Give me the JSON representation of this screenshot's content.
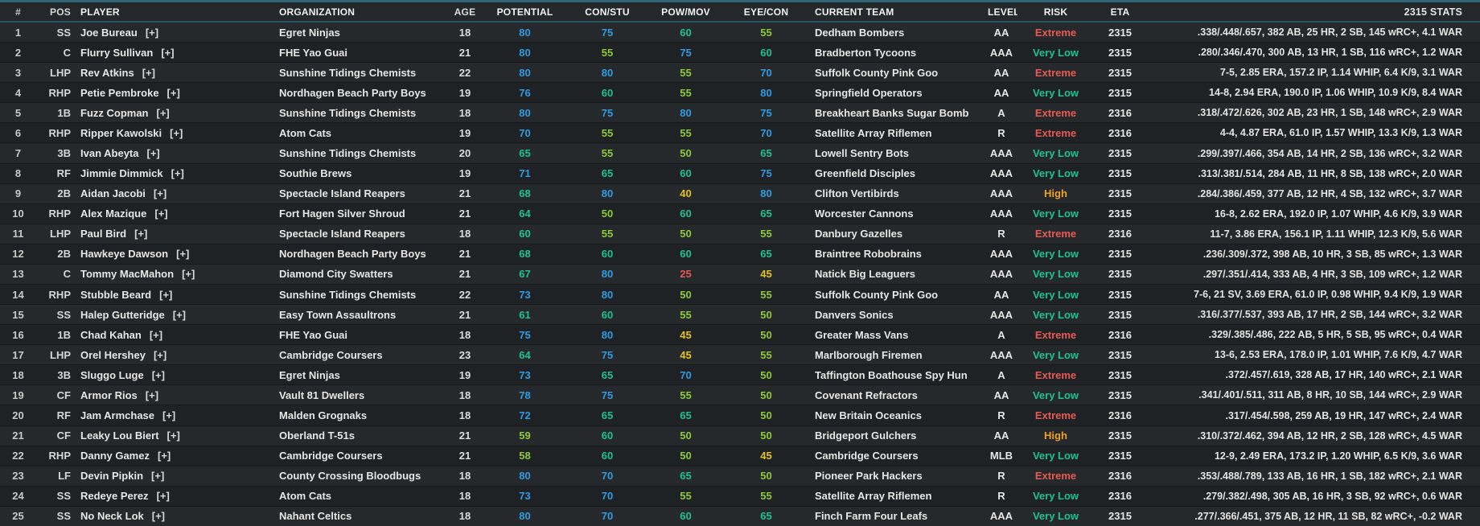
{
  "table": {
    "columns": [
      "#",
      "POS",
      "PLAYER",
      "ORGANIZATION",
      "AGE",
      "POTENTIAL",
      "CON/STU",
      "POW/MOV",
      "EYE/CON",
      "CURRENT TEAM",
      "LEVEL",
      "RISK",
      "ETA",
      "2315 STATS"
    ],
    "rows": [
      {
        "num": "1",
        "pos": "SS",
        "player": "Joe Bureau",
        "expand": "[+]",
        "org": "Egret Ninjas",
        "age": "18",
        "potential": 80,
        "con_stu": 75,
        "pow_mov": 60,
        "eye_con": 55,
        "team": "Dedham Bombers",
        "level": "AA",
        "risk": "Extreme",
        "eta": "2315",
        "stats": ".338/.448/.657, 382 AB, 25 HR, 2 SB, 145 wRC+, 4.1 WAR"
      },
      {
        "num": "2",
        "pos": "C",
        "player": "Flurry Sullivan",
        "expand": "[+]",
        "org": "FHE Yao Guai",
        "age": "21",
        "potential": 80,
        "con_stu": 55,
        "pow_mov": 75,
        "eye_con": 60,
        "team": "Bradberton Tycoons",
        "level": "AAA",
        "risk": "Very Low",
        "eta": "2315",
        "stats": ".280/.346/.470, 300 AB, 13 HR, 1 SB, 116 wRC+, 1.2 WAR"
      },
      {
        "num": "3",
        "pos": "LHP",
        "player": "Rev Atkins",
        "expand": "[+]",
        "org": "Sunshine Tidings Chemists",
        "age": "22",
        "potential": 80,
        "con_stu": 80,
        "pow_mov": 55,
        "eye_con": 70,
        "team": "Suffolk County Pink Goo",
        "level": "AA",
        "risk": "Extreme",
        "eta": "2315",
        "stats": "7-5, 2.85 ERA, 157.2 IP, 1.14 WHIP, 6.4 K/9, 3.1 WAR"
      },
      {
        "num": "4",
        "pos": "RHP",
        "player": "Petie Pembroke",
        "expand": "[+]",
        "org": "Nordhagen Beach Party Boys",
        "age": "19",
        "potential": 76,
        "con_stu": 60,
        "pow_mov": 55,
        "eye_con": 80,
        "team": "Springfield Operators",
        "level": "AA",
        "risk": "Very Low",
        "eta": "2315",
        "stats": "14-8, 2.94 ERA, 190.0 IP, 1.06 WHIP, 10.9 K/9, 8.4 WAR"
      },
      {
        "num": "5",
        "pos": "1B",
        "player": "Fuzz Copman",
        "expand": "[+]",
        "org": "Sunshine Tidings Chemists",
        "age": "18",
        "potential": 80,
        "con_stu": 75,
        "pow_mov": 80,
        "eye_con": 75,
        "team": "Breakheart Banks Sugar Bomb",
        "level": "A",
        "risk": "Extreme",
        "eta": "2316",
        "stats": ".318/.472/.626, 302 AB, 23 HR, 1 SB, 148 wRC+, 2.9 WAR"
      },
      {
        "num": "6",
        "pos": "RHP",
        "player": "Ripper Kawolski",
        "expand": "[+]",
        "org": "Atom Cats",
        "age": "19",
        "potential": 70,
        "con_stu": 55,
        "pow_mov": 55,
        "eye_con": 70,
        "team": "Satellite Array Riflemen",
        "level": "R",
        "risk": "Extreme",
        "eta": "2316",
        "stats": "4-4, 4.87 ERA, 61.0 IP, 1.57 WHIP, 13.3 K/9, 1.3 WAR"
      },
      {
        "num": "7",
        "pos": "3B",
        "player": "Ivan Abeyta",
        "expand": "[+]",
        "org": "Sunshine Tidings Chemists",
        "age": "20",
        "potential": 65,
        "con_stu": 55,
        "pow_mov": 50,
        "eye_con": 65,
        "team": "Lowell Sentry Bots",
        "level": "AAA",
        "risk": "Very Low",
        "eta": "2315",
        "stats": ".299/.397/.466, 354 AB, 14 HR, 2 SB, 136 wRC+, 3.2 WAR"
      },
      {
        "num": "8",
        "pos": "RF",
        "player": "Jimmie Dimmick",
        "expand": "[+]",
        "org": "Southie Brews",
        "age": "19",
        "potential": 71,
        "con_stu": 65,
        "pow_mov": 60,
        "eye_con": 75,
        "team": "Greenfield Disciples",
        "level": "AAA",
        "risk": "Very Low",
        "eta": "2315",
        "stats": ".313/.381/.514, 284 AB, 11 HR, 8 SB, 138 wRC+, 2.0 WAR"
      },
      {
        "num": "9",
        "pos": "2B",
        "player": "Aidan Jacobi",
        "expand": "[+]",
        "org": "Spectacle Island Reapers",
        "age": "21",
        "potential": 68,
        "con_stu": 80,
        "pow_mov": 40,
        "eye_con": 80,
        "team": "Clifton Vertibirds",
        "level": "AAA",
        "risk": "High",
        "eta": "2315",
        "stats": ".284/.386/.459, 377 AB, 12 HR, 4 SB, 132 wRC+, 3.7 WAR"
      },
      {
        "num": "10",
        "pos": "RHP",
        "player": "Alex Mazique",
        "expand": "[+]",
        "org": "Fort Hagen Silver Shroud",
        "age": "21",
        "potential": 64,
        "con_stu": 50,
        "pow_mov": 60,
        "eye_con": 65,
        "team": "Worcester Cannons",
        "level": "AAA",
        "risk": "Very Low",
        "eta": "2315",
        "stats": "16-8, 2.62 ERA, 192.0 IP, 1.07 WHIP, 4.6 K/9, 3.9 WAR"
      },
      {
        "num": "11",
        "pos": "LHP",
        "player": "Paul Bird",
        "expand": "[+]",
        "org": "Spectacle Island Reapers",
        "age": "18",
        "potential": 60,
        "con_stu": 55,
        "pow_mov": 50,
        "eye_con": 55,
        "team": "Danbury Gazelles",
        "level": "R",
        "risk": "Extreme",
        "eta": "2316",
        "stats": "11-7, 3.86 ERA, 156.1 IP, 1.11 WHIP, 12.3 K/9, 5.6 WAR"
      },
      {
        "num": "12",
        "pos": "2B",
        "player": "Hawkeye Dawson",
        "expand": "[+]",
        "org": "Nordhagen Beach Party Boys",
        "age": "21",
        "potential": 68,
        "con_stu": 60,
        "pow_mov": 60,
        "eye_con": 65,
        "team": "Braintree Robobrains",
        "level": "AAA",
        "risk": "Very Low",
        "eta": "2315",
        "stats": ".236/.309/.372, 398 AB, 10 HR, 3 SB, 85 wRC+, 1.3 WAR"
      },
      {
        "num": "13",
        "pos": "C",
        "player": "Tommy MacMahon",
        "expand": "[+]",
        "org": "Diamond City Swatters",
        "age": "21",
        "potential": 67,
        "con_stu": 80,
        "pow_mov": 25,
        "eye_con": 45,
        "team": "Natick Big Leaguers",
        "level": "AAA",
        "risk": "Very Low",
        "eta": "2315",
        "stats": ".297/.351/.414, 333 AB, 4 HR, 3 SB, 109 wRC+, 1.2 WAR"
      },
      {
        "num": "14",
        "pos": "RHP",
        "player": "Stubble Beard",
        "expand": "[+]",
        "org": "Sunshine Tidings Chemists",
        "age": "22",
        "potential": 73,
        "con_stu": 80,
        "pow_mov": 50,
        "eye_con": 55,
        "team": "Suffolk County Pink Goo",
        "level": "AA",
        "risk": "Very Low",
        "eta": "2315",
        "stats": "7-6, 21 SV, 3.69 ERA, 61.0 IP, 0.98 WHIP, 9.4 K/9, 1.9 WAR"
      },
      {
        "num": "15",
        "pos": "SS",
        "player": "Halep Gutteridge",
        "expand": "[+]",
        "org": "Easy Town Assaultrons",
        "age": "21",
        "potential": 61,
        "con_stu": 60,
        "pow_mov": 55,
        "eye_con": 50,
        "team": "Danvers Sonics",
        "level": "AAA",
        "risk": "Very Low",
        "eta": "2315",
        "stats": ".316/.377/.537, 393 AB, 17 HR, 2 SB, 144 wRC+, 3.2 WAR"
      },
      {
        "num": "16",
        "pos": "1B",
        "player": "Chad Kahan",
        "expand": "[+]",
        "org": "FHE Yao Guai",
        "age": "18",
        "potential": 75,
        "con_stu": 80,
        "pow_mov": 45,
        "eye_con": 50,
        "team": "Greater Mass Vans",
        "level": "A",
        "risk": "Extreme",
        "eta": "2316",
        "stats": ".329/.385/.486, 222 AB, 5 HR, 5 SB, 95 wRC+, 0.4 WAR"
      },
      {
        "num": "17",
        "pos": "LHP",
        "player": "Orel Hershey",
        "expand": "[+]",
        "org": "Cambridge Coursers",
        "age": "23",
        "potential": 64,
        "con_stu": 75,
        "pow_mov": 45,
        "eye_con": 55,
        "team": "Marlborough Firemen",
        "level": "AAA",
        "risk": "Very Low",
        "eta": "2315",
        "stats": "13-6, 2.53 ERA, 178.0 IP, 1.01 WHIP, 7.6 K/9, 4.7 WAR"
      },
      {
        "num": "18",
        "pos": "3B",
        "player": "Sluggo Luge",
        "expand": "[+]",
        "org": "Egret Ninjas",
        "age": "19",
        "potential": 73,
        "con_stu": 65,
        "pow_mov": 70,
        "eye_con": 50,
        "team": "Taffington Boathouse Spy Hun",
        "level": "A",
        "risk": "Extreme",
        "eta": "2315",
        "stats": ".372/.457/.619, 328 AB, 17 HR, 140 wRC+, 2.1 WAR"
      },
      {
        "num": "19",
        "pos": "CF",
        "player": "Armor Rios",
        "expand": "[+]",
        "org": "Vault 81 Dwellers",
        "age": "18",
        "potential": 78,
        "con_stu": 75,
        "pow_mov": 55,
        "eye_con": 50,
        "team": "Covenant Refractors",
        "level": "AA",
        "risk": "Very Low",
        "eta": "2315",
        "stats": ".341/.401/.511, 311 AB, 8 HR, 10 SB, 144 wRC+, 2.9 WAR"
      },
      {
        "num": "20",
        "pos": "RF",
        "player": "Jam Armchase",
        "expand": "[+]",
        "org": "Malden Grognaks",
        "age": "18",
        "potential": 72,
        "con_stu": 65,
        "pow_mov": 65,
        "eye_con": 50,
        "team": "New Britain Oceanics",
        "level": "R",
        "risk": "Extreme",
        "eta": "2316",
        "stats": ".317/.454/.598, 259 AB, 19 HR, 147 wRC+, 2.4 WAR"
      },
      {
        "num": "21",
        "pos": "CF",
        "player": "Leaky Lou Biert",
        "expand": "[+]",
        "org": "Oberland T-51s",
        "age": "21",
        "potential": 59,
        "con_stu": 60,
        "pow_mov": 50,
        "eye_con": 50,
        "team": "Bridgeport Gulchers",
        "level": "AA",
        "risk": "High",
        "eta": "2315",
        "stats": ".310/.372/.462, 394 AB, 12 HR, 2 SB, 128 wRC+, 4.5 WAR"
      },
      {
        "num": "22",
        "pos": "RHP",
        "player": "Danny Gamez",
        "expand": "[+]",
        "org": "Cambridge Coursers",
        "age": "21",
        "potential": 58,
        "con_stu": 60,
        "pow_mov": 50,
        "eye_con": 45,
        "team": "Cambridge Coursers",
        "level": "MLB",
        "risk": "Very Low",
        "eta": "2315",
        "stats": "12-9, 2.49 ERA, 173.2 IP, 1.20 WHIP, 6.5 K/9, 3.6 WAR"
      },
      {
        "num": "23",
        "pos": "LF",
        "player": "Devin Pipkin",
        "expand": "[+]",
        "org": "County Crossing Bloodbugs",
        "age": "18",
        "potential": 80,
        "con_stu": 70,
        "pow_mov": 65,
        "eye_con": 50,
        "team": "Pioneer Park Hackers",
        "level": "R",
        "risk": "Extreme",
        "eta": "2316",
        "stats": ".353/.488/.789, 133 AB, 16 HR, 1 SB, 182 wRC+, 2.1 WAR"
      },
      {
        "num": "24",
        "pos": "SS",
        "player": "Redeye Perez",
        "expand": "[+]",
        "org": "Atom Cats",
        "age": "18",
        "potential": 73,
        "con_stu": 70,
        "pow_mov": 55,
        "eye_con": 55,
        "team": "Satellite Array Riflemen",
        "level": "R",
        "risk": "Very Low",
        "eta": "2316",
        "stats": ".279/.382/.498, 305 AB, 16 HR, 3 SB, 92 wRC+, 0.6 WAR"
      },
      {
        "num": "25",
        "pos": "SS",
        "player": "No Neck Lok",
        "expand": "[+]",
        "org": "Nahant Celtics",
        "age": "18",
        "potential": 80,
        "con_stu": 70,
        "pow_mov": 60,
        "eye_con": 65,
        "team": "Finch Farm Four Leafs",
        "level": "AAA",
        "risk": "Very Low",
        "eta": "2315",
        "stats": ".277/.366/.451, 375 AB, 12 HR, 11 SB, 82 wRC+, -0.2 WAR"
      }
    ]
  },
  "colors": {
    "rating_excellent": "#2f9ce4",
    "rating_good": "#1fc38e",
    "rating_average": "#8ecc33",
    "rating_low": "#e6c51a",
    "rating_poor": "#e65a54",
    "risk_extreme": "#e65a54",
    "risk_very_low": "#1fc38e",
    "risk_high": "#f0a028",
    "accent_top": "#2f6575"
  }
}
